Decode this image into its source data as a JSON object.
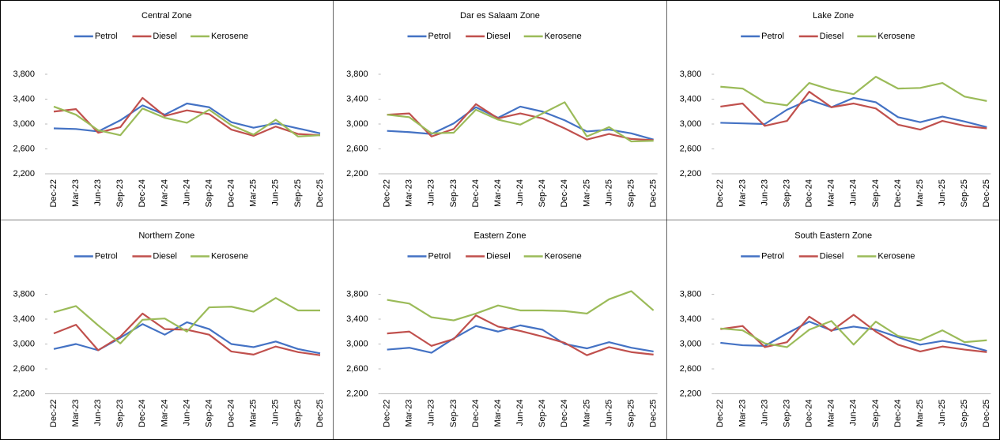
{
  "chart_data": [
    {
      "type": "line",
      "title": "Central Zone",
      "categories": [
        "Dec-22",
        "Mar-23",
        "Jun-23",
        "Sep-23",
        "Dec-24",
        "Mar-24",
        "Jun-24",
        "Sep-24",
        "Dec-24",
        "Mar-25",
        "Jun-25",
        "Sep-25",
        "Dec-25"
      ],
      "series": [
        {
          "name": "Petrol",
          "color": "#4472c4",
          "values": [
            2930,
            2920,
            2880,
            3060,
            3300,
            3150,
            3330,
            3270,
            3030,
            2940,
            3010,
            2930,
            2850
          ]
        },
        {
          "name": "Diesel",
          "color": "#c0504d",
          "values": [
            3200,
            3240,
            2860,
            2950,
            3420,
            3130,
            3220,
            3160,
            2910,
            2810,
            2960,
            2840,
            2820
          ]
        },
        {
          "name": "Kerosene",
          "color": "#9bbb59",
          "values": [
            3280,
            3150,
            2900,
            2820,
            3250,
            3100,
            3020,
            3230,
            2980,
            2830,
            3070,
            2800,
            2820
          ]
        }
      ],
      "ylim": [
        2200,
        3800
      ],
      "yticks": [
        {
          "value": 2200,
          "label": "2,200"
        },
        {
          "value": 2600,
          "label": "2,600"
        },
        {
          "value": 3000,
          "label": "3,000"
        },
        {
          "value": 3400,
          "label": "3,400"
        },
        {
          "value": 3800,
          "label": "3,800"
        }
      ]
    },
    {
      "type": "line",
      "title": "Dar es Salaam Zone",
      "categories": [
        "Dec-22",
        "Mar-23",
        "Jun-23",
        "Sep-23",
        "Dec-24",
        "Mar-24",
        "Jun-24",
        "Sep-24",
        "Dec-24",
        "Mar-25",
        "Jun-25",
        "Sep-25",
        "Dec-25"
      ],
      "series": [
        {
          "name": "Petrol",
          "color": "#4472c4",
          "values": [
            2890,
            2870,
            2840,
            3010,
            3270,
            3100,
            3280,
            3200,
            3060,
            2880,
            2910,
            2850,
            2750
          ]
        },
        {
          "name": "Diesel",
          "color": "#c0504d",
          "values": [
            3150,
            3170,
            2800,
            2920,
            3320,
            3090,
            3170,
            3090,
            2930,
            2750,
            2840,
            2760,
            2740
          ]
        },
        {
          "name": "Kerosene",
          "color": "#9bbb59",
          "values": [
            3150,
            3110,
            2850,
            2860,
            3230,
            3070,
            2990,
            3170,
            3350,
            2800,
            2950,
            2720,
            2730
          ]
        }
      ],
      "ylim": [
        2200,
        3800
      ],
      "yticks": [
        {
          "value": 2200,
          "label": "2,200"
        },
        {
          "value": 2600,
          "label": "2,600"
        },
        {
          "value": 3000,
          "label": "3,000"
        },
        {
          "value": 3400,
          "label": "3,400"
        },
        {
          "value": 3800,
          "label": "3,800"
        }
      ]
    },
    {
      "type": "line",
      "title": "Lake Zone",
      "categories": [
        "Dec-22",
        "Mar-23",
        "Jun-23",
        "Sep-23",
        "Dec-24",
        "Mar-24",
        "Jun-24",
        "Sep-24",
        "Dec-24",
        "Mar-25",
        "Jun-25",
        "Sep-25",
        "Dec-25"
      ],
      "series": [
        {
          "name": "Petrol",
          "color": "#4472c4",
          "values": [
            3020,
            3010,
            3000,
            3230,
            3390,
            3270,
            3420,
            3350,
            3110,
            3030,
            3120,
            3040,
            2950
          ]
        },
        {
          "name": "Diesel",
          "color": "#c0504d",
          "values": [
            3280,
            3330,
            2970,
            3050,
            3520,
            3270,
            3330,
            3250,
            2990,
            2910,
            3050,
            2970,
            2930
          ]
        },
        {
          "name": "Kerosene",
          "color": "#9bbb59",
          "values": [
            3600,
            3570,
            3350,
            3300,
            3660,
            3550,
            3480,
            3760,
            3570,
            3580,
            3660,
            3440,
            3370
          ]
        }
      ],
      "ylim": [
        2200,
        3800
      ],
      "yticks": [
        {
          "value": 2200,
          "label": "2,200"
        },
        {
          "value": 2600,
          "label": "2,600"
        },
        {
          "value": 3000,
          "label": "3,000"
        },
        {
          "value": 3400,
          "label": "3,400"
        },
        {
          "value": 3800,
          "label": "3,800"
        }
      ]
    },
    {
      "type": "line",
      "title": "Northern Zone",
      "categories": [
        "Dec-22",
        "Mar-23",
        "Jun-23",
        "Sep-23",
        "Dec-24",
        "Mar-24",
        "Jun-24",
        "Sep-24",
        "Dec-24",
        "Mar-25",
        "Jun-25",
        "Sep-25",
        "Dec-25"
      ],
      "series": [
        {
          "name": "Petrol",
          "color": "#4472c4",
          "values": [
            2920,
            3000,
            2900,
            3100,
            3320,
            3150,
            3350,
            3240,
            3000,
            2950,
            3040,
            2920,
            2850
          ]
        },
        {
          "name": "Diesel",
          "color": "#c0504d",
          "values": [
            3170,
            3310,
            2900,
            3120,
            3490,
            3240,
            3230,
            3150,
            2880,
            2830,
            2960,
            2870,
            2820
          ]
        },
        {
          "name": "Kerosene",
          "color": "#9bbb59",
          "values": [
            3510,
            3610,
            3300,
            3010,
            3390,
            3410,
            3200,
            3590,
            3600,
            3520,
            3740,
            3540,
            3540
          ]
        }
      ],
      "ylim": [
        2200,
        3800
      ],
      "yticks": [
        {
          "value": 2200,
          "label": "2,200"
        },
        {
          "value": 2600,
          "label": "2,600"
        },
        {
          "value": 3000,
          "label": "3,000"
        },
        {
          "value": 3400,
          "label": "3,400"
        },
        {
          "value": 3800,
          "label": "3,800"
        }
      ]
    },
    {
      "type": "line",
      "title": "Eastern Zone",
      "categories": [
        "Dec-22",
        "Mar-23",
        "Jun-23",
        "Sep-23",
        "Dec-24",
        "Mar-24",
        "Jun-24",
        "Sep-24",
        "Dec-24",
        "Mar-25",
        "Jun-25",
        "Sep-25",
        "Dec-25"
      ],
      "series": [
        {
          "name": "Petrol",
          "color": "#4472c4",
          "values": [
            2910,
            2940,
            2860,
            3090,
            3290,
            3200,
            3300,
            3230,
            3000,
            2930,
            3030,
            2940,
            2880
          ]
        },
        {
          "name": "Diesel",
          "color": "#c0504d",
          "values": [
            3170,
            3200,
            2970,
            3080,
            3460,
            3280,
            3210,
            3120,
            3020,
            2820,
            2950,
            2870,
            2830
          ]
        },
        {
          "name": "Kerosene",
          "color": "#9bbb59",
          "values": [
            3710,
            3650,
            3430,
            3380,
            3490,
            3620,
            3540,
            3540,
            3530,
            3490,
            3720,
            3850,
            3540
          ]
        }
      ],
      "ylim": [
        2200,
        3800
      ],
      "yticks": [
        {
          "value": 2200,
          "label": "2,200"
        },
        {
          "value": 2600,
          "label": "2,600"
        },
        {
          "value": 3000,
          "label": "3,000"
        },
        {
          "value": 3400,
          "label": "3,400"
        },
        {
          "value": 3800,
          "label": "3,800"
        }
      ]
    },
    {
      "type": "line",
      "title": "South Eastern Zone",
      "categories": [
        "Dec-22",
        "Mar-23",
        "Jun-23",
        "Sep-23",
        "Dec-24",
        "Mar-24",
        "Jun-24",
        "Sep-24",
        "Dec-24",
        "Mar-25",
        "Jun-25",
        "Sep-25",
        "Dec-25"
      ],
      "series": [
        {
          "name": "Petrol",
          "color": "#4472c4",
          "values": [
            3020,
            2980,
            2970,
            3170,
            3360,
            3220,
            3280,
            3230,
            3110,
            2990,
            3050,
            2990,
            2890
          ]
        },
        {
          "name": "Diesel",
          "color": "#c0504d",
          "values": [
            3240,
            3290,
            2950,
            3030,
            3440,
            3210,
            3470,
            3200,
            2990,
            2880,
            2960,
            2910,
            2870
          ]
        },
        {
          "name": "Kerosene",
          "color": "#9bbb59",
          "values": [
            3250,
            3220,
            3010,
            2950,
            3230,
            3370,
            2990,
            3360,
            3130,
            3060,
            3220,
            3030,
            3060
          ]
        }
      ],
      "ylim": [
        2200,
        3800
      ],
      "yticks": [
        {
          "value": 2200,
          "label": "2,200"
        },
        {
          "value": 2600,
          "label": "2,600"
        },
        {
          "value": 3000,
          "label": "3,000"
        },
        {
          "value": 3400,
          "label": "3,400"
        },
        {
          "value": 3800,
          "label": "3,800"
        }
      ]
    }
  ]
}
